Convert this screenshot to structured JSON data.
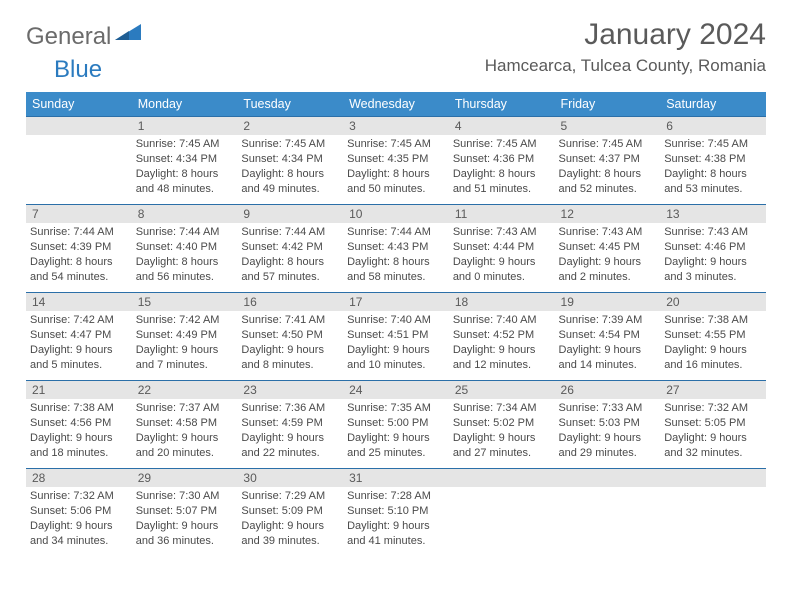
{
  "logo": {
    "word1": "General",
    "word2": "Blue"
  },
  "title": "January 2024",
  "location": "Hamcearca, Tulcea County, Romania",
  "colors": {
    "header_bg": "#3b8bc9",
    "header_text": "#ffffff",
    "daynum_bg": "#e5e5e5",
    "daynum_border": "#2b6fa8",
    "body_text": "#4a4a4a",
    "logo_gray": "#6b6b6b",
    "logo_blue": "#2b7bbf"
  },
  "day_headers": [
    "Sunday",
    "Monday",
    "Tuesday",
    "Wednesday",
    "Thursday",
    "Friday",
    "Saturday"
  ],
  "weeks": [
    [
      null,
      {
        "n": "1",
        "sr": "Sunrise: 7:45 AM",
        "ss": "Sunset: 4:34 PM",
        "d1": "Daylight: 8 hours",
        "d2": "and 48 minutes."
      },
      {
        "n": "2",
        "sr": "Sunrise: 7:45 AM",
        "ss": "Sunset: 4:34 PM",
        "d1": "Daylight: 8 hours",
        "d2": "and 49 minutes."
      },
      {
        "n": "3",
        "sr": "Sunrise: 7:45 AM",
        "ss": "Sunset: 4:35 PM",
        "d1": "Daylight: 8 hours",
        "d2": "and 50 minutes."
      },
      {
        "n": "4",
        "sr": "Sunrise: 7:45 AM",
        "ss": "Sunset: 4:36 PM",
        "d1": "Daylight: 8 hours",
        "d2": "and 51 minutes."
      },
      {
        "n": "5",
        "sr": "Sunrise: 7:45 AM",
        "ss": "Sunset: 4:37 PM",
        "d1": "Daylight: 8 hours",
        "d2": "and 52 minutes."
      },
      {
        "n": "6",
        "sr": "Sunrise: 7:45 AM",
        "ss": "Sunset: 4:38 PM",
        "d1": "Daylight: 8 hours",
        "d2": "and 53 minutes."
      }
    ],
    [
      {
        "n": "7",
        "sr": "Sunrise: 7:44 AM",
        "ss": "Sunset: 4:39 PM",
        "d1": "Daylight: 8 hours",
        "d2": "and 54 minutes."
      },
      {
        "n": "8",
        "sr": "Sunrise: 7:44 AM",
        "ss": "Sunset: 4:40 PM",
        "d1": "Daylight: 8 hours",
        "d2": "and 56 minutes."
      },
      {
        "n": "9",
        "sr": "Sunrise: 7:44 AM",
        "ss": "Sunset: 4:42 PM",
        "d1": "Daylight: 8 hours",
        "d2": "and 57 minutes."
      },
      {
        "n": "10",
        "sr": "Sunrise: 7:44 AM",
        "ss": "Sunset: 4:43 PM",
        "d1": "Daylight: 8 hours",
        "d2": "and 58 minutes."
      },
      {
        "n": "11",
        "sr": "Sunrise: 7:43 AM",
        "ss": "Sunset: 4:44 PM",
        "d1": "Daylight: 9 hours",
        "d2": "and 0 minutes."
      },
      {
        "n": "12",
        "sr": "Sunrise: 7:43 AM",
        "ss": "Sunset: 4:45 PM",
        "d1": "Daylight: 9 hours",
        "d2": "and 2 minutes."
      },
      {
        "n": "13",
        "sr": "Sunrise: 7:43 AM",
        "ss": "Sunset: 4:46 PM",
        "d1": "Daylight: 9 hours",
        "d2": "and 3 minutes."
      }
    ],
    [
      {
        "n": "14",
        "sr": "Sunrise: 7:42 AM",
        "ss": "Sunset: 4:47 PM",
        "d1": "Daylight: 9 hours",
        "d2": "and 5 minutes."
      },
      {
        "n": "15",
        "sr": "Sunrise: 7:42 AM",
        "ss": "Sunset: 4:49 PM",
        "d1": "Daylight: 9 hours",
        "d2": "and 7 minutes."
      },
      {
        "n": "16",
        "sr": "Sunrise: 7:41 AM",
        "ss": "Sunset: 4:50 PM",
        "d1": "Daylight: 9 hours",
        "d2": "and 8 minutes."
      },
      {
        "n": "17",
        "sr": "Sunrise: 7:40 AM",
        "ss": "Sunset: 4:51 PM",
        "d1": "Daylight: 9 hours",
        "d2": "and 10 minutes."
      },
      {
        "n": "18",
        "sr": "Sunrise: 7:40 AM",
        "ss": "Sunset: 4:52 PM",
        "d1": "Daylight: 9 hours",
        "d2": "and 12 minutes."
      },
      {
        "n": "19",
        "sr": "Sunrise: 7:39 AM",
        "ss": "Sunset: 4:54 PM",
        "d1": "Daylight: 9 hours",
        "d2": "and 14 minutes."
      },
      {
        "n": "20",
        "sr": "Sunrise: 7:38 AM",
        "ss": "Sunset: 4:55 PM",
        "d1": "Daylight: 9 hours",
        "d2": "and 16 minutes."
      }
    ],
    [
      {
        "n": "21",
        "sr": "Sunrise: 7:38 AM",
        "ss": "Sunset: 4:56 PM",
        "d1": "Daylight: 9 hours",
        "d2": "and 18 minutes."
      },
      {
        "n": "22",
        "sr": "Sunrise: 7:37 AM",
        "ss": "Sunset: 4:58 PM",
        "d1": "Daylight: 9 hours",
        "d2": "and 20 minutes."
      },
      {
        "n": "23",
        "sr": "Sunrise: 7:36 AM",
        "ss": "Sunset: 4:59 PM",
        "d1": "Daylight: 9 hours",
        "d2": "and 22 minutes."
      },
      {
        "n": "24",
        "sr": "Sunrise: 7:35 AM",
        "ss": "Sunset: 5:00 PM",
        "d1": "Daylight: 9 hours",
        "d2": "and 25 minutes."
      },
      {
        "n": "25",
        "sr": "Sunrise: 7:34 AM",
        "ss": "Sunset: 5:02 PM",
        "d1": "Daylight: 9 hours",
        "d2": "and 27 minutes."
      },
      {
        "n": "26",
        "sr": "Sunrise: 7:33 AM",
        "ss": "Sunset: 5:03 PM",
        "d1": "Daylight: 9 hours",
        "d2": "and 29 minutes."
      },
      {
        "n": "27",
        "sr": "Sunrise: 7:32 AM",
        "ss": "Sunset: 5:05 PM",
        "d1": "Daylight: 9 hours",
        "d2": "and 32 minutes."
      }
    ],
    [
      {
        "n": "28",
        "sr": "Sunrise: 7:32 AM",
        "ss": "Sunset: 5:06 PM",
        "d1": "Daylight: 9 hours",
        "d2": "and 34 minutes."
      },
      {
        "n": "29",
        "sr": "Sunrise: 7:30 AM",
        "ss": "Sunset: 5:07 PM",
        "d1": "Daylight: 9 hours",
        "d2": "and 36 minutes."
      },
      {
        "n": "30",
        "sr": "Sunrise: 7:29 AM",
        "ss": "Sunset: 5:09 PM",
        "d1": "Daylight: 9 hours",
        "d2": "and 39 minutes."
      },
      {
        "n": "31",
        "sr": "Sunrise: 7:28 AM",
        "ss": "Sunset: 5:10 PM",
        "d1": "Daylight: 9 hours",
        "d2": "and 41 minutes."
      },
      null,
      null,
      null
    ]
  ]
}
